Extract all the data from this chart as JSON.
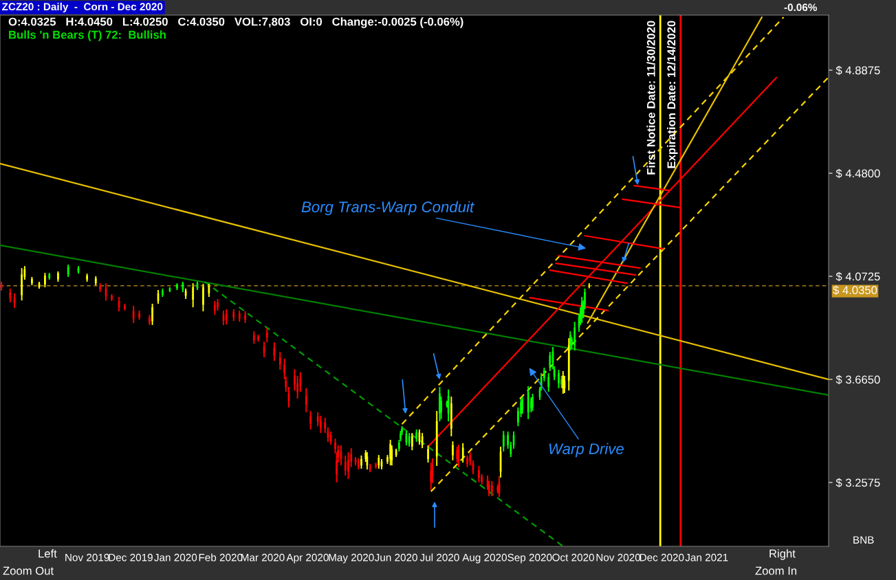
{
  "chart_data": {
    "type": "candlestick",
    "title": "ZCZ20 : Daily  -  Corn - Dec 2020",
    "subtitle": "O:4.0325   H:4.0450   L:4.0250   C:4.0350   VOL:7,803   OI:0   Change:-0.0025 (-0.06%)",
    "annotations": [
      "Bulls 'n Bears (T) 72:  Bullish",
      "-0.06%",
      "Borg Trans-Warp Conduit",
      "Warp Drive",
      "BNB",
      "Left",
      "Right",
      "Zoom Out",
      "Zoom In"
    ],
    "x": [
      "2019-09-03",
      "2019-09-09",
      "2019-09-12",
      "2019-09-17",
      "2019-09-19",
      "2019-09-24",
      "2019-09-29",
      "2019-10-03",
      "2019-10-06",
      "2019-10-12",
      "2019-10-19",
      "2019-10-26",
      "2019-11-01",
      "2019-11-07",
      "2019-11-10",
      "2019-11-14",
      "2019-11-18",
      "2019-11-23",
      "2019-11-27",
      "2019-12-03",
      "2019-12-07",
      "2019-12-14",
      "2019-12-16",
      "2019-12-20",
      "2019-12-23",
      "2019-12-28",
      "2020-01-02",
      "2020-01-06",
      "2020-01-08",
      "2020-01-13",
      "2020-01-16",
      "2020-01-20",
      "2020-01-24",
      "2020-01-28",
      "2020-01-30",
      "2020-02-03",
      "2020-02-05",
      "2020-02-10",
      "2020-02-14",
      "2020-02-18",
      "2020-02-24",
      "2020-02-27",
      "2020-03-02",
      "2020-03-04",
      "2020-03-09",
      "2020-03-13",
      "2020-03-16",
      "2020-03-17",
      "2020-03-19",
      "2020-03-23",
      "2020-03-25",
      "2020-03-27",
      "2020-03-31",
      "2020-04-03",
      "2020-04-08",
      "2020-04-10",
      "2020-04-13",
      "2020-04-15",
      "2020-04-17",
      "2020-04-20",
      "2020-04-21",
      "2020-04-22",
      "2020-04-24",
      "2020-04-27",
      "2020-04-29",
      "2020-05-01",
      "2020-05-04",
      "2020-05-06",
      "2020-05-08",
      "2020-05-11",
      "2020-05-12",
      "2020-05-14",
      "2020-05-18",
      "2020-05-20",
      "2020-05-22",
      "2020-05-26",
      "2020-05-28",
      "2020-05-29",
      "2020-06-01",
      "2020-06-03",
      "2020-06-04",
      "2020-06-05",
      "2020-06-08",
      "2020-06-10",
      "2020-06-12",
      "2020-06-15",
      "2020-06-17",
      "2020-06-19",
      "2020-06-23",
      "2020-06-25",
      "2020-06-26",
      "2020-06-29",
      "2020-07-01",
      "2020-07-02",
      "2020-07-06",
      "2020-07-07",
      "2020-07-09",
      "2020-07-10",
      "2020-07-13",
      "2020-07-14",
      "2020-07-17",
      "2020-07-20",
      "2020-07-22",
      "2020-07-24",
      "2020-07-28",
      "2020-07-30",
      "2020-08-03",
      "2020-08-04",
      "2020-08-06",
      "2020-08-10",
      "2020-08-11",
      "2020-08-12",
      "2020-08-14",
      "2020-08-17",
      "2020-08-19",
      "2020-08-21",
      "2020-08-24",
      "2020-08-26",
      "2020-08-27",
      "2020-08-31",
      "2020-09-02",
      "2020-09-03",
      "2020-09-08",
      "2020-09-09",
      "2020-09-11",
      "2020-09-14",
      "2020-09-15",
      "2020-09-17",
      "2020-09-18",
      "2020-09-21",
      "2020-09-23",
      "2020-09-24",
      "2020-09-25",
      "2020-09-28",
      "2020-09-29",
      "2020-09-30",
      "2020-10-02",
      "2020-10-05",
      "2020-10-06",
      "2020-10-07",
      "2020-10-08",
      "2020-10-09",
      "2020-10-12"
    ],
    "ohlc": [
      [
        4.04,
        4.051,
        4.016,
        4.027
      ],
      [
        4.008,
        4.024,
        3.969,
        3.985
      ],
      [
        3.988,
        4.005,
        3.948,
        3.965
      ],
      [
        3.998,
        4.105,
        3.977,
        4.08
      ],
      [
        4.07,
        4.113,
        4.059,
        4.1
      ],
      [
        4.045,
        4.07,
        4.037,
        4.062
      ],
      [
        4.03,
        4.051,
        4.024,
        4.045
      ],
      [
        4.04,
        4.086,
        4.029,
        4.075
      ],
      [
        4.065,
        4.086,
        4.059,
        4.08
      ],
      [
        4.06,
        4.092,
        4.051,
        4.085
      ],
      [
        4.08,
        4.119,
        4.07,
        4.11
      ],
      [
        4.09,
        4.113,
        4.083,
        4.105
      ],
      [
        4.06,
        4.083,
        4.051,
        4.075
      ],
      [
        4.045,
        4.073,
        4.037,
        4.065
      ],
      [
        4.035,
        4.045,
        4.01,
        4.02
      ],
      [
        4.025,
        4.045,
        3.977,
        3.995
      ],
      [
        3.995,
        4.002,
        3.975,
        3.982
      ],
      [
        3.975,
        3.991,
        3.934,
        3.95
      ],
      [
        3.957,
        3.964,
        3.937,
        3.945
      ],
      [
        3.935,
        3.956,
        3.888,
        3.905
      ],
      [
        3.927,
        3.937,
        3.901,
        3.91
      ],
      [
        3.91,
        3.92,
        3.88,
        3.89
      ],
      [
        3.895,
        3.964,
        3.88,
        3.95
      ],
      [
        3.975,
        4.018,
        3.964,
        4.005
      ],
      [
        4.0,
        4.024,
        3.991,
        4.015
      ],
      [
        4.015,
        4.029,
        4.01,
        4.025
      ],
      [
        4.025,
        4.045,
        4.018,
        4.04
      ],
      [
        4.02,
        4.051,
        4.01,
        4.045
      ],
      [
        3.995,
        4.024,
        3.983,
        4.015
      ],
      [
        3.98,
        4.045,
        3.95,
        4.03
      ],
      [
        4.025,
        4.051,
        4.018,
        4.045
      ],
      [
        3.96,
        4.043,
        3.934,
        4.03
      ],
      [
        4.005,
        4.043,
        3.991,
        4.035
      ],
      [
        3.96,
        3.975,
        3.92,
        3.935
      ],
      [
        3.97,
        3.983,
        3.937,
        3.95
      ],
      [
        3.92,
        3.937,
        3.88,
        3.895
      ],
      [
        3.925,
        3.942,
        3.882,
        3.9
      ],
      [
        3.93,
        3.942,
        3.896,
        3.91
      ],
      [
        3.925,
        3.937,
        3.893,
        3.905
      ],
      [
        3.92,
        3.934,
        3.888,
        3.9
      ],
      [
        3.84,
        3.855,
        3.806,
        3.82
      ],
      [
        3.835,
        3.842,
        3.814,
        3.822
      ],
      [
        3.795,
        3.814,
        3.752,
        3.77
      ],
      [
        3.85,
        3.869,
        3.812,
        3.83
      ],
      [
        3.79,
        3.812,
        3.738,
        3.76
      ],
      [
        3.752,
        3.774,
        3.703,
        3.725
      ],
      [
        3.722,
        3.747,
        3.665,
        3.69
      ],
      [
        3.66,
        3.676,
        3.616,
        3.635
      ],
      [
        3.61,
        3.635,
        3.554,
        3.58
      ],
      [
        3.68,
        3.705,
        3.621,
        3.645
      ],
      [
        3.65,
        3.679,
        3.589,
        3.615
      ],
      [
        3.67,
        3.693,
        3.616,
        3.64
      ],
      [
        3.6,
        3.63,
        3.535,
        3.565
      ],
      [
        3.52,
        3.54,
        3.467,
        3.49
      ],
      [
        3.518,
        3.535,
        3.48,
        3.497
      ],
      [
        3.5,
        3.521,
        3.453,
        3.475
      ],
      [
        3.495,
        3.513,
        3.453,
        3.47
      ],
      [
        3.458,
        3.475,
        3.418,
        3.435
      ],
      [
        3.445,
        3.459,
        3.407,
        3.42
      ],
      [
        3.415,
        3.431,
        3.372,
        3.39
      ],
      [
        3.345,
        3.377,
        3.258,
        3.29
      ],
      [
        3.385,
        3.404,
        3.336,
        3.355
      ],
      [
        3.38,
        3.404,
        3.325,
        3.35
      ],
      [
        3.34,
        3.364,
        3.285,
        3.305
      ],
      [
        3.345,
        3.377,
        3.271,
        3.3
      ],
      [
        3.37,
        3.393,
        3.318,
        3.34
      ],
      [
        3.35,
        3.358,
        3.325,
        3.335
      ],
      [
        3.342,
        3.353,
        3.309,
        3.32
      ],
      [
        3.325,
        3.364,
        3.312,
        3.35
      ],
      [
        3.35,
        3.385,
        3.339,
        3.375
      ],
      [
        3.325,
        3.377,
        3.309,
        3.36
      ],
      [
        3.325,
        3.331,
        3.298,
        3.305
      ],
      [
        3.33,
        3.336,
        3.312,
        3.318
      ],
      [
        3.325,
        3.366,
        3.312,
        3.355
      ],
      [
        3.32,
        3.35,
        3.309,
        3.34
      ],
      [
        3.34,
        3.366,
        3.331,
        3.358
      ],
      [
        3.35,
        3.426,
        3.325,
        3.41
      ],
      [
        3.345,
        3.404,
        3.325,
        3.39
      ],
      [
        3.365,
        3.391,
        3.358,
        3.385
      ],
      [
        3.39,
        3.426,
        3.38,
        3.415
      ],
      [
        3.43,
        3.461,
        3.42,
        3.45
      ],
      [
        3.455,
        3.48,
        3.445,
        3.47
      ],
      [
        3.415,
        3.461,
        3.404,
        3.45
      ],
      [
        3.41,
        3.453,
        3.399,
        3.44
      ],
      [
        3.4,
        3.453,
        3.385,
        3.44
      ],
      [
        3.43,
        3.467,
        3.418,
        3.455
      ],
      [
        3.42,
        3.467,
        3.407,
        3.455
      ],
      [
        3.405,
        3.453,
        3.393,
        3.44
      ],
      [
        3.35,
        3.404,
        3.336,
        3.39
      ],
      [
        3.305,
        3.336,
        3.228,
        3.26
      ],
      [
        3.325,
        3.353,
        3.255,
        3.285
      ],
      [
        3.36,
        3.54,
        3.323,
        3.5
      ],
      [
        3.53,
        3.635,
        3.499,
        3.61
      ],
      [
        3.535,
        3.597,
        3.508,
        3.58
      ],
      [
        3.56,
        3.581,
        3.554,
        3.575
      ],
      [
        3.53,
        3.625,
        3.499,
        3.6
      ],
      [
        3.47,
        3.597,
        3.44,
        3.57
      ],
      [
        3.365,
        3.42,
        3.345,
        3.405
      ],
      [
        3.385,
        3.399,
        3.336,
        3.35
      ],
      [
        3.39,
        3.407,
        3.318,
        3.34
      ],
      [
        3.355,
        3.413,
        3.336,
        3.395
      ],
      [
        3.355,
        3.364,
        3.318,
        3.33
      ],
      [
        3.365,
        3.377,
        3.325,
        3.34
      ],
      [
        3.33,
        3.345,
        3.29,
        3.305
      ],
      [
        3.305,
        3.323,
        3.258,
        3.275
      ],
      [
        3.28,
        3.29,
        3.249,
        3.26
      ],
      [
        3.27,
        3.285,
        3.228,
        3.24
      ],
      [
        3.25,
        3.263,
        3.203,
        3.215
      ],
      [
        3.245,
        3.263,
        3.203,
        3.22
      ],
      [
        3.24,
        3.249,
        3.214,
        3.222
      ],
      [
        3.26,
        3.282,
        3.2,
        3.215
      ],
      [
        3.3,
        3.399,
        3.277,
        3.38
      ],
      [
        3.4,
        3.461,
        3.38,
        3.445
      ],
      [
        3.405,
        3.459,
        3.391,
        3.445
      ],
      [
        3.37,
        3.418,
        3.358,
        3.405
      ],
      [
        3.405,
        3.459,
        3.391,
        3.445
      ],
      [
        3.495,
        3.554,
        3.48,
        3.54
      ],
      [
        3.53,
        3.589,
        3.516,
        3.575
      ],
      [
        3.545,
        3.597,
        3.529,
        3.585
      ],
      [
        3.535,
        3.638,
        3.508,
        3.615
      ],
      [
        3.55,
        3.594,
        3.535,
        3.58
      ],
      [
        3.555,
        3.608,
        3.54,
        3.595
      ],
      [
        3.595,
        3.635,
        3.584,
        3.625
      ],
      [
        3.64,
        3.69,
        3.621,
        3.675
      ],
      [
        3.67,
        3.711,
        3.657,
        3.7
      ],
      [
        3.635,
        3.69,
        3.616,
        3.675
      ],
      [
        3.715,
        3.774,
        3.698,
        3.76
      ],
      [
        3.73,
        3.793,
        3.705,
        3.775
      ],
      [
        3.675,
        3.717,
        3.662,
        3.705
      ],
      [
        3.65,
        3.703,
        3.63,
        3.69
      ],
      [
        3.645,
        3.679,
        3.63,
        3.665
      ],
      [
        3.63,
        3.698,
        3.608,
        3.68
      ],
      [
        3.63,
        3.679,
        3.611,
        3.66
      ],
      [
        3.66,
        3.828,
        3.621,
        3.8
      ],
      [
        3.8,
        3.855,
        3.779,
        3.84
      ],
      [
        3.8,
        3.833,
        3.785,
        3.825
      ],
      [
        3.8,
        3.893,
        3.779,
        3.87
      ],
      [
        3.87,
        3.923,
        3.853,
        3.91
      ],
      [
        3.895,
        3.95,
        3.88,
        3.935
      ],
      [
        3.91,
        3.991,
        3.888,
        3.97
      ],
      [
        3.925,
        3.977,
        3.907,
        3.96
      ],
      [
        3.96,
        4.024,
        3.942,
        4.01
      ],
      [
        4.0325,
        4.045,
        4.025,
        4.035
      ]
    ],
    "colors": [
      "#ff0000",
      "#ff0000",
      "#ff0000",
      "#ffff00",
      "#ffff00",
      "#ffff00",
      "#ffff00",
      "#ffff00",
      "#00ff00",
      "#ffff00",
      "#00ff00",
      "#00ff00",
      "#ffff00",
      "#ffff00",
      "#ff0000",
      "#ff0000",
      "#ff0000",
      "#ff0000",
      "#ff0000",
      "#ff0000",
      "#ff0000",
      "#ff0000",
      "#ffff00",
      "#ffff00",
      "#00ff00",
      "#00ff00",
      "#00ff00",
      "#00ff00",
      "#ffff00",
      "#ffff00",
      "#00ff00",
      "#ffff00",
      "#ffff00",
      "#ff0000",
      "#ff0000",
      "#ff0000",
      "#ff0000",
      "#ff0000",
      "#ff0000",
      "#ff0000",
      "#ff0000",
      "#ff0000",
      "#ff0000",
      "#ff0000",
      "#ff0000",
      "#ff0000",
      "#ff0000",
      "#ff0000",
      "#ff0000",
      "#ff0000",
      "#ff0000",
      "#ff0000",
      "#ff0000",
      "#ff0000",
      "#ff0000",
      "#ff0000",
      "#ff0000",
      "#ff0000",
      "#ff0000",
      "#ff0000",
      "#ff0000",
      "#ff0000",
      "#ff0000",
      "#ff0000",
      "#ff0000",
      "#ff0000",
      "#ff0000",
      "#ff0000",
      "#ffff00",
      "#ffff00",
      "#ffff00",
      "#ff0000",
      "#ff0000",
      "#ffff00",
      "#ffff00",
      "#ffff00",
      "#ffff00",
      "#ffff00",
      "#ffff00",
      "#00ff00",
      "#00ff00",
      "#00ff00",
      "#00ff00",
      "#00ff00",
      "#ffff00",
      "#00ff00",
      "#ffff00",
      "#ffff00",
      "#ffff00",
      "#ff0000",
      "#ff0000",
      "#ffff00",
      "#00ff00",
      "#00ff00",
      "#00ff00",
      "#00ff00",
      "#ffff00",
      "#ffff00",
      "#ff0000",
      "#ff0000",
      "#ffff00",
      "#ff0000",
      "#ff0000",
      "#ff0000",
      "#ff0000",
      "#ff0000",
      "#ff0000",
      "#ff0000",
      "#ff0000",
      "#ff0000",
      "#ff0000",
      "#ffff00",
      "#00ff00",
      "#00ff00",
      "#00ff00",
      "#00ff00",
      "#00ff00",
      "#00ff00",
      "#00ff00",
      "#00ff00",
      "#00ff00",
      "#00ff00",
      "#00ff00",
      "#00ff00",
      "#00ff00",
      "#00ff00",
      "#00ff00",
      "#00ff00",
      "#00ff00",
      "#00ff00",
      "#00ff00",
      "#ffff00",
      "#ffff00",
      "#ffff00",
      "#00ff00",
      "#00ff00",
      "#00ff00",
      "#00ff00",
      "#00ff00",
      "#00ff00",
      "#00ff00",
      "#00ff00",
      "#ffff00"
    ],
    "series": [
      {
        "type": "line",
        "x": [
          "2019-09-02",
          "2021-03-26"
        ],
        "values": [
          4.518,
          3.665
        ],
        "color": "#e6c000",
        "line_style": "solid"
      },
      {
        "type": "line",
        "x": [
          "2019-09-02",
          "2021-03-26"
        ],
        "values": [
          4.195,
          3.603
        ],
        "color": "#008000",
        "line_style": "solid"
      },
      {
        "type": "line",
        "x": [
          "2020-01-21",
          "2020-09-24"
        ],
        "values": [
          4.051,
          3.005
        ],
        "color": "#00a000",
        "line_style": "dashed"
      },
      {
        "type": "line",
        "x": [
          "2020-06-23",
          "2021-02-18"
        ],
        "values": [
          3.399,
          4.858
        ],
        "color": "#ff0000",
        "line_style": "solid"
      },
      {
        "type": "line",
        "x": [
          "2020-06-05",
          "2021-02-23"
        ],
        "values": [
          3.488,
          5.097
        ],
        "color": "#ffd700",
        "line_style": "dashed"
      },
      {
        "type": "line",
        "x": [
          "2020-06-25",
          "2021-03-26"
        ],
        "values": [
          3.222,
          4.86
        ],
        "color": "#ffd700",
        "line_style": "dashed"
      },
      {
        "type": "line",
        "x": [
          "2020-10-11",
          "2021-02-08"
        ],
        "values": [
          3.888,
          5.097
        ],
        "color": "#e6c000",
        "line_style": "solid"
      },
      {
        "type": "line",
        "x": [
          "2020-11-12",
          "2020-12-06"
        ],
        "values": [
          4.431,
          4.412
        ],
        "color": "#ff0000",
        "line_style": "solid"
      },
      {
        "type": "line",
        "x": [
          "2020-11-04",
          "2020-12-14"
        ],
        "values": [
          4.377,
          4.344
        ],
        "color": "#ff0000",
        "line_style": "solid"
      },
      {
        "type": "line",
        "x": [
          "2020-10-09",
          "2020-12-02"
        ],
        "values": [
          4.233,
          4.181
        ],
        "color": "#ff0000",
        "line_style": "solid"
      },
      {
        "type": "line",
        "x": [
          "2020-09-21",
          "2020-11-16"
        ],
        "values": [
          4.154,
          4.105
        ],
        "color": "#ff0000",
        "line_style": "solid"
      },
      {
        "type": "line",
        "x": [
          "2020-09-19",
          "2020-11-13"
        ],
        "values": [
          4.124,
          4.078
        ],
        "color": "#ff0000",
        "line_style": "solid"
      },
      {
        "type": "line",
        "x": [
          "2020-09-15",
          "2020-11-07"
        ],
        "values": [
          4.097,
          4.045
        ],
        "color": "#ff0000",
        "line_style": "solid"
      },
      {
        "type": "line",
        "x": [
          "2020-09-01",
          "2020-10-25"
        ],
        "values": [
          3.988,
          3.937
        ],
        "color": "#ff0000",
        "line_style": "solid"
      }
    ],
    "ref_lines": [
      {
        "axis": "y",
        "value": 4.035,
        "label": "$ 4.0350",
        "color": "#c8961e",
        "line_style": "dashed"
      },
      {
        "axis": "x",
        "value": "2020-11-30",
        "label": "First Notice Date: 11/30/2020",
        "color": "#ffff00",
        "line_style": "solid"
      },
      {
        "axis": "x",
        "value": "2020-12-14",
        "label": "Expiration Date: 12/14/2020",
        "color": "#ff0000",
        "line_style": "solid"
      }
    ],
    "xlim": [
      "2019-09-02",
      "2021-03-26"
    ],
    "xticks": [
      {
        "value": "2019-11-01",
        "label": "Nov 2019"
      },
      {
        "value": "2019-12-01",
        "label": "Dec 2019"
      },
      {
        "value": "2020-01-01",
        "label": "Jan 2020"
      },
      {
        "value": "2020-02-01",
        "label": "Feb 2020"
      },
      {
        "value": "2020-03-01",
        "label": "Mar 2020"
      },
      {
        "value": "2020-04-01",
        "label": "Apr 2020"
      },
      {
        "value": "2020-05-01",
        "label": "May 2020"
      },
      {
        "value": "2020-06-01",
        "label": "Jun 2020"
      },
      {
        "value": "2020-07-01",
        "label": "Jul 2020"
      },
      {
        "value": "2020-08-01",
        "label": "Aug 2020"
      },
      {
        "value": "2020-09-01",
        "label": "Sep 2020"
      },
      {
        "value": "2020-10-01",
        "label": "Oct 2020"
      },
      {
        "value": "2020-11-01",
        "label": "Nov 2020"
      },
      {
        "value": "2020-12-01",
        "label": "Dec 2020"
      },
      {
        "value": "2021-01-01",
        "label": "Jan 2021"
      }
    ],
    "ylim": [
      3.005,
      5.105
    ],
    "yticks": [
      {
        "value": 3.2575,
        "label": "$ 3.2575"
      },
      {
        "value": 3.665,
        "label": "$ 3.6650"
      },
      {
        "value": 4.0725,
        "label": "$ 4.0725"
      },
      {
        "value": 4.48,
        "label": "$ 4.4800"
      },
      {
        "value": 4.8875,
        "label": "$ 4.8875"
      }
    ]
  }
}
